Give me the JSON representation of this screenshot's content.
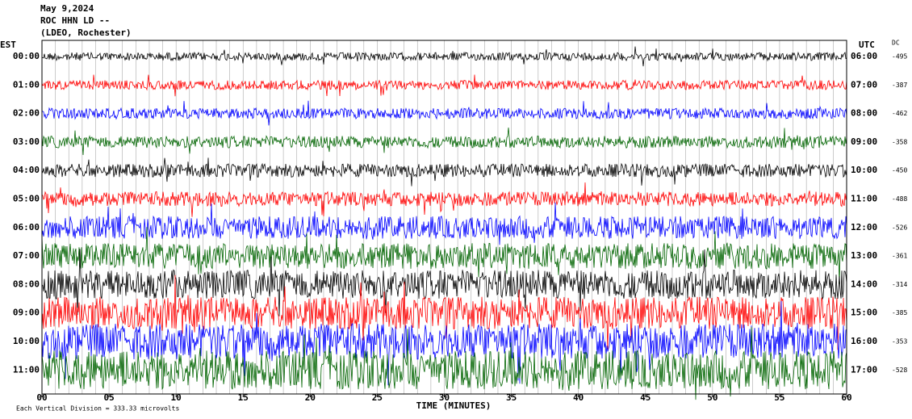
{
  "header": {
    "date": "May 9,2024",
    "station": "ROC HHN LD --",
    "location": "(LDEO, Rochester)"
  },
  "left_axis": {
    "title": "EST",
    "labels": [
      "00:00",
      "01:00",
      "02:00",
      "03:00",
      "04:00",
      "05:00",
      "06:00",
      "07:00",
      "08:00",
      "09:00",
      "10:00",
      "11:00"
    ]
  },
  "right_axis": {
    "title": "UTC",
    "labels": [
      "06:00",
      "07:00",
      "08:00",
      "09:00",
      "10:00",
      "11:00",
      "12:00",
      "13:00",
      "14:00",
      "15:00",
      "16:00",
      "17:00"
    ]
  },
  "dc": {
    "title": "DC",
    "values": [
      "-495",
      "-387",
      "-462",
      "-358",
      "-450",
      "-488",
      "-526",
      "-361",
      "-314",
      "-385",
      "-353",
      "-528"
    ]
  },
  "x_axis": {
    "title": "TIME (MINUTES)",
    "labels": [
      "00",
      "05",
      "10",
      "15",
      "20",
      "25",
      "30",
      "35",
      "40",
      "45",
      "50",
      "55",
      "60"
    ]
  },
  "footer": {
    "scale": "Each Vertical Division =  333.33 microvolts"
  },
  "trace_colors": [
    "#000000",
    "#ff0000",
    "#0000ff",
    "#006400"
  ]
}
